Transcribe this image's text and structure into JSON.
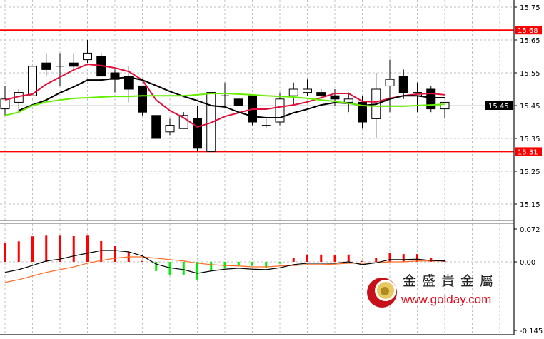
{
  "chart_data": [
    {
      "type": "candlestick",
      "panel": "price",
      "yticks": [
        "15.75",
        "15.65",
        "15.55",
        "15.45",
        "15.35",
        "15.25",
        "15.15"
      ],
      "ylim": [
        15.1,
        15.77
      ],
      "grid": true,
      "horizontal_lines": [
        {
          "label": "15.68",
          "value": 15.68,
          "color": "#ff0000"
        },
        {
          "label": "15.31",
          "value": 15.31,
          "color": "#ff0000"
        }
      ],
      "current_price": {
        "label": "15.45",
        "value": 15.45
      },
      "ohlc": [
        [
          15.44,
          15.51,
          15.42,
          15.47
        ],
        [
          15.46,
          15.5,
          15.43,
          15.49
        ],
        [
          15.48,
          15.57,
          15.48,
          15.57
        ],
        [
          15.58,
          15.61,
          15.54,
          15.56
        ],
        [
          15.57,
          15.61,
          15.51,
          15.57
        ],
        [
          15.58,
          15.61,
          15.56,
          15.57
        ],
        [
          15.59,
          15.65,
          15.58,
          15.61
        ],
        [
          15.6,
          15.61,
          15.54,
          15.54
        ],
        [
          15.55,
          15.56,
          15.49,
          15.53
        ],
        [
          15.54,
          15.57,
          15.46,
          15.5
        ],
        [
          15.51,
          15.51,
          15.42,
          15.43
        ],
        [
          15.42,
          15.42,
          15.35,
          15.35
        ],
        [
          15.37,
          15.41,
          15.36,
          15.39
        ],
        [
          15.38,
          15.43,
          15.38,
          15.42
        ],
        [
          15.41,
          15.45,
          15.31,
          15.32
        ],
        [
          15.31,
          15.49,
          15.31,
          15.49
        ],
        [
          15.48,
          15.52,
          15.45,
          15.48
        ],
        [
          15.47,
          15.47,
          15.45,
          15.45
        ],
        [
          15.48,
          15.48,
          15.39,
          15.4
        ],
        [
          15.39,
          15.41,
          15.38,
          15.39
        ],
        [
          15.4,
          15.49,
          15.39,
          15.47
        ],
        [
          15.48,
          15.52,
          15.45,
          15.5
        ],
        [
          15.49,
          15.53,
          15.48,
          15.5
        ],
        [
          15.49,
          15.5,
          15.47,
          15.48
        ],
        [
          15.48,
          15.5,
          15.45,
          15.47
        ],
        [
          15.46,
          15.49,
          15.43,
          15.47
        ],
        [
          15.46,
          15.48,
          15.38,
          15.4
        ],
        [
          15.41,
          15.55,
          15.35,
          15.5
        ],
        [
          15.51,
          15.59,
          15.43,
          15.53
        ],
        [
          15.54,
          15.56,
          15.47,
          15.49
        ],
        [
          15.48,
          15.52,
          15.43,
          15.49
        ],
        [
          15.5,
          15.51,
          15.43,
          15.44
        ],
        [
          15.44,
          15.46,
          15.41,
          15.46
        ]
      ],
      "moving_averages": [
        {
          "color": "#e0103a",
          "values": [
            15.467,
            15.478,
            15.485,
            15.515,
            15.537,
            15.559,
            15.576,
            15.572,
            15.565,
            15.554,
            15.528,
            15.467,
            15.435,
            15.413,
            15.385,
            15.398,
            15.417,
            15.428,
            15.439,
            15.439,
            15.446,
            15.452,
            15.461,
            15.474,
            15.487,
            15.487,
            15.463,
            15.461,
            15.472,
            15.48,
            15.485,
            15.487,
            15.483
          ]
        },
        {
          "color": "#000000",
          "values": [
            null,
            15.435,
            15.452,
            15.467,
            15.489,
            15.507,
            15.528,
            15.528,
            15.533,
            15.537,
            15.528,
            15.511,
            15.493,
            15.478,
            15.465,
            15.45,
            15.446,
            15.43,
            15.417,
            15.413,
            15.413,
            15.428,
            15.439,
            15.452,
            15.459,
            15.457,
            15.45,
            15.454,
            15.47,
            15.48,
            15.48,
            15.474,
            15.474
          ]
        },
        {
          "color": "#66ee00",
          "values": [
            15.42,
            15.43,
            15.45,
            15.461,
            15.467,
            15.472,
            15.474,
            15.476,
            15.478,
            15.478,
            15.48,
            15.48,
            15.48,
            15.48,
            15.483,
            15.487,
            15.487,
            15.485,
            15.483,
            15.48,
            15.478,
            15.476,
            15.472,
            15.467,
            15.463,
            15.457,
            15.45,
            15.448,
            15.448,
            15.448,
            15.45,
            15.452,
            15.454
          ]
        }
      ]
    },
    {
      "type": "bar+line",
      "panel": "oscillator",
      "yticks": [
        "0.072",
        "0.00",
        "-0.145"
      ],
      "ylim": [
        -0.145,
        0.072
      ],
      "colors": {
        "positive": "#ff0000",
        "negative": "#00ee00",
        "main": "#000000",
        "signal": "#ff6a20"
      },
      "histogram": [
        0.042,
        0.045,
        0.056,
        0.059,
        0.059,
        0.058,
        0.059,
        0.047,
        0.036,
        0.022,
        0.002,
        -0.02,
        -0.028,
        -0.028,
        -0.039,
        -0.019,
        -0.014,
        -0.008,
        -0.009,
        -0.013,
        -0.004,
        0.009,
        0.016,
        0.016,
        0.014,
        0.016,
        0.002,
        0.009,
        0.02,
        0.017,
        0.017,
        0.008,
        0.002
      ],
      "main_line": [
        -0.023,
        -0.017,
        -0.008,
        0.002,
        0.006,
        0.013,
        0.019,
        0.025,
        0.025,
        0.022,
        0.013,
        -0.005,
        -0.013,
        -0.017,
        -0.025,
        -0.02,
        -0.016,
        -0.014,
        -0.016,
        -0.017,
        -0.013,
        -0.006,
        -0.003,
        -0.003,
        -0.003,
        0.0,
        -0.006,
        -0.002,
        0.005,
        0.005,
        0.006,
        0.003,
        0.002
      ],
      "signal_line": [
        -0.045,
        -0.039,
        -0.031,
        -0.023,
        -0.017,
        -0.011,
        -0.003,
        0.003,
        0.008,
        0.011,
        0.011,
        0.008,
        0.005,
        0.002,
        -0.003,
        -0.006,
        -0.008,
        -0.009,
        -0.011,
        -0.011,
        -0.009,
        -0.008,
        -0.006,
        -0.006,
        -0.005,
        -0.003,
        -0.003,
        -0.002,
        0.0,
        0.0,
        0.002,
        0.002,
        0.002
      ]
    }
  ],
  "logo": {
    "name_cn": "金盛貴金屬",
    "url": "www.golday.com"
  }
}
